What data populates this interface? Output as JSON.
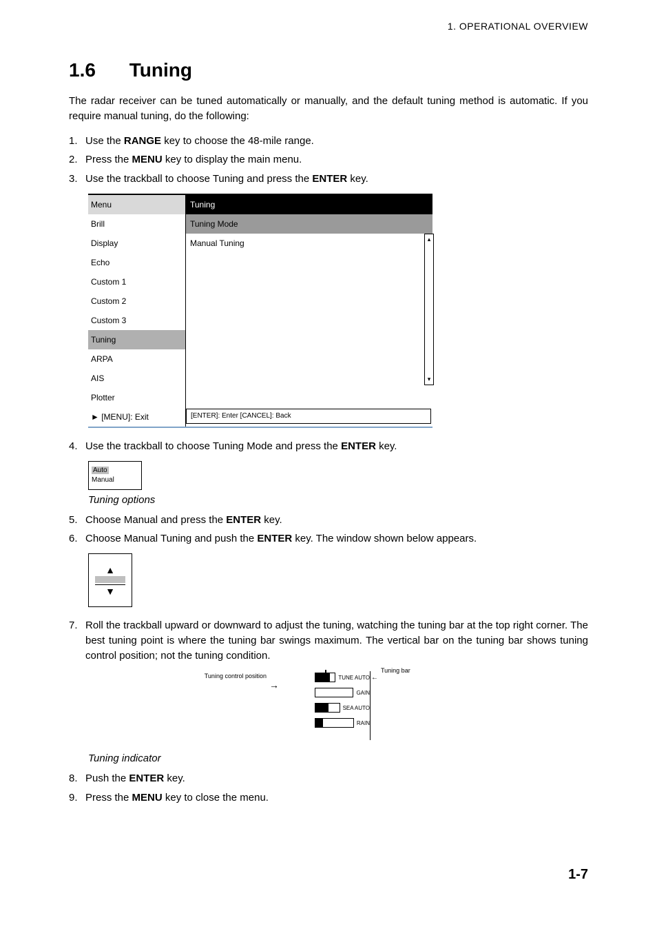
{
  "header": {
    "running": "1. OPERATIONAL OVERVIEW"
  },
  "section": {
    "number": "1.6",
    "title": "Tuning"
  },
  "intro": "The radar receiver can be tuned automatically or manually, and the default tuning method is automatic. If you require manual tuning, do the following:",
  "steps": {
    "s1": {
      "n": "1.",
      "pre": "Use the ",
      "b": "RANGE",
      "post": " key to choose the 48-mile range."
    },
    "s2": {
      "n": "2.",
      "pre": "Press the ",
      "b": "MENU",
      "post": " key to display the main menu."
    },
    "s3": {
      "n": "3.",
      "pre": "Use the trackball to choose Tuning and press the ",
      "b": "ENTER",
      "post": " key."
    },
    "s4": {
      "n": "4.",
      "pre": "Use the trackball to choose Tuning Mode and press the ",
      "b": "ENTER",
      "post": " key."
    },
    "s5": {
      "n": "5.",
      "pre": "Choose Manual and press the ",
      "b": "ENTER",
      "post": " key."
    },
    "s6": {
      "n": "6.",
      "pre": "Choose Manual Tuning and push the ",
      "b": "ENTER",
      "post": " key. The window shown below appears."
    },
    "s7": {
      "n": "7.",
      "text": "Roll the trackball upward or downward to adjust the tuning, watching the tuning bar at the top right corner. The best tuning point is where the tuning bar swings maximum. The vertical bar on the tuning bar shows tuning control position; not the tuning condition."
    },
    "s8": {
      "n": "8.",
      "pre": "Push the ",
      "b": "ENTER",
      "post": " key."
    },
    "s9": {
      "n": "9.",
      "pre": "Press the ",
      "b": "MENU",
      "post": " key to close the menu."
    }
  },
  "menu": {
    "header_left": "Menu",
    "header_right": "Tuning",
    "rows": [
      {
        "left": "Brill",
        "right": "Tuning Mode",
        "right_bg": "#9a9a9a"
      },
      {
        "left": "Display",
        "right": "Manual Tuning",
        "right_bg": "#ffffff"
      },
      {
        "left": "Echo",
        "right": "",
        "right_bg": "#ffffff"
      },
      {
        "left": "Custom 1",
        "right": "",
        "right_bg": "#ffffff"
      },
      {
        "left": "Custom 2",
        "right": "",
        "right_bg": "#ffffff"
      },
      {
        "left": "Custom 3",
        "right": "",
        "right_bg": "#ffffff"
      },
      {
        "left": "Tuning",
        "right": "",
        "right_bg": "#ffffff",
        "selected": true
      },
      {
        "left": "ARPA",
        "right": "",
        "right_bg": "#ffffff"
      },
      {
        "left": "AIS",
        "right": "",
        "right_bg": "#ffffff"
      },
      {
        "left": "Plotter",
        "right": "",
        "right_bg": "#ffffff"
      }
    ],
    "help_row_left": "► [MENU]: Exit",
    "help_row_right": "[ENTER]: Enter  [CANCEL]: Back"
  },
  "option_box": {
    "line1": "Auto",
    "line2": "Manual"
  },
  "captions": {
    "tuning_options": "Tuning options",
    "tuning_indicator": "Tuning indicator"
  },
  "tuning_indicator": {
    "left_label": "Tuning control position",
    "right_label": "Tuning bar",
    "rows": [
      {
        "label": "TUNE  AUTO",
        "fill_percent": 75,
        "cursor_percent": 48
      },
      {
        "label": "GAIN",
        "fill_percent": 0,
        "cursor_percent": null
      },
      {
        "label": "SEA  AUTO",
        "fill_percent": 55,
        "cursor_percent": null
      },
      {
        "label": "RAIN",
        "fill_percent": 20,
        "cursor_percent": null
      }
    ]
  },
  "page_number": "1-7"
}
